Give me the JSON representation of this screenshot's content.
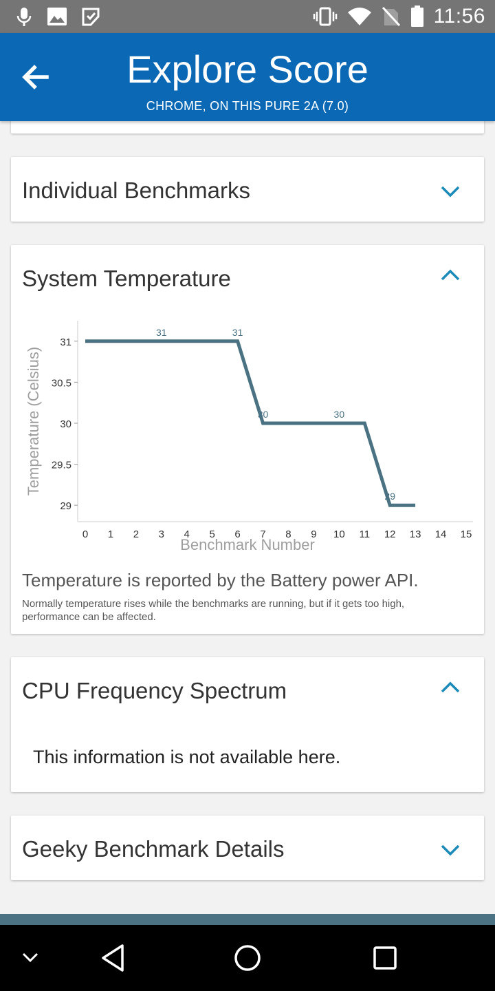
{
  "status_bar": {
    "time": "11:56",
    "left_icons": [
      "microphone-icon",
      "image-icon",
      "play-store-icon"
    ],
    "right_icons": [
      "vibrate-icon",
      "wifi-icon",
      "no-sim-icon",
      "battery-icon"
    ]
  },
  "app_bar": {
    "title": "Explore Score",
    "subtitle": "CHROME, ON THIS PURE 2A (7.0)"
  },
  "sections": {
    "individual": {
      "title": "Individual Benchmarks",
      "expanded": false
    },
    "temperature": {
      "title": "System Temperature",
      "expanded": true,
      "note_main": "Temperature is reported by the Battery power API.",
      "note_sub": "Normally temperature rises while the benchmarks are running, but if it gets too high, performance can be affected."
    },
    "cpu": {
      "title": "CPU Frequency Spectrum",
      "expanded": true,
      "message": "This information is not available here."
    },
    "geeky": {
      "title": "Geeky Benchmark Details",
      "expanded": false
    }
  },
  "colors": {
    "app_bar": "#0a68b5",
    "line": "#4a7282",
    "chevron": "#1a8ab8"
  },
  "chart_data": {
    "type": "line",
    "xlabel": "Benchmark Number",
    "ylabel": "Temperature (Celsius)",
    "xlim": [
      0,
      15
    ],
    "ylim": [
      28.8,
      31.25
    ],
    "x_ticks": [
      0,
      1,
      2,
      3,
      4,
      5,
      6,
      7,
      8,
      9,
      10,
      11,
      12,
      13,
      14,
      15
    ],
    "y_ticks": [
      29,
      29.5,
      30,
      30.5,
      31
    ],
    "y_tick_labels": [
      "29",
      "29.5",
      "30",
      "30.5",
      "31"
    ],
    "x": [
      0,
      6,
      7,
      11,
      12,
      13
    ],
    "y": [
      31,
      31,
      30,
      30,
      29,
      29
    ],
    "data_labels": [
      {
        "x": 3,
        "y": 31,
        "text": "31"
      },
      {
        "x": 6,
        "y": 31,
        "text": "31"
      },
      {
        "x": 7,
        "y": 30,
        "text": "30"
      },
      {
        "x": 10,
        "y": 30,
        "text": "30"
      },
      {
        "x": 12,
        "y": 29,
        "text": "29"
      }
    ]
  },
  "nav_bar": {
    "icons": [
      "collapse-icon",
      "back-icon",
      "home-icon",
      "recents-icon"
    ]
  }
}
